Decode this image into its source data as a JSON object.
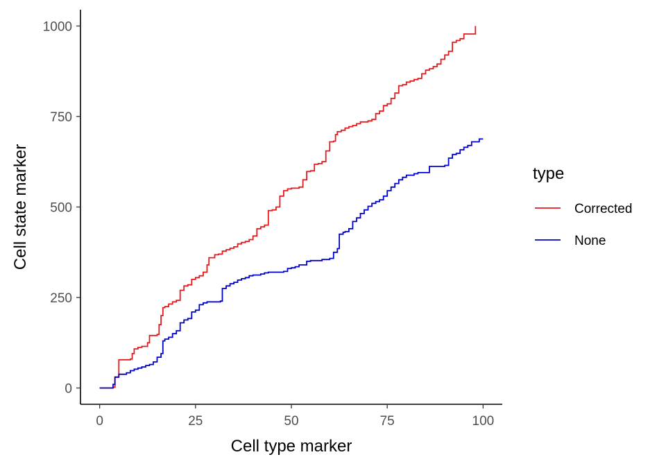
{
  "chart_data": {
    "type": "line",
    "step": true,
    "xlabel": "Cell type marker",
    "ylabel": "Cell state marker",
    "xlim": [
      -5,
      105
    ],
    "ylim": [
      -45,
      1045
    ],
    "x_ticks": [
      0,
      25,
      50,
      75,
      100
    ],
    "y_ticks": [
      0,
      250,
      500,
      750,
      1000
    ],
    "x_tick_labels": [
      "0",
      "25",
      "50",
      "75",
      "100"
    ],
    "y_tick_labels": [
      "0",
      "250",
      "500",
      "750",
      "1000"
    ],
    "grid": false,
    "legend": {
      "title": "type",
      "placement": "right"
    },
    "series": [
      {
        "name": "Corrected",
        "color": "#e41a1c",
        "points": [
          [
            0,
            0
          ],
          [
            3.5,
            2
          ],
          [
            4,
            30
          ],
          [
            5,
            78
          ],
          [
            8,
            80
          ],
          [
            8.5,
            95
          ],
          [
            9,
            108
          ],
          [
            10,
            112
          ],
          [
            11,
            115
          ],
          [
            12.5,
            125
          ],
          [
            13,
            145
          ],
          [
            15,
            148
          ],
          [
            15.5,
            175
          ],
          [
            16,
            200
          ],
          [
            16.5,
            222
          ],
          [
            17,
            225
          ],
          [
            18,
            232
          ],
          [
            19,
            238
          ],
          [
            20,
            242
          ],
          [
            21,
            270
          ],
          [
            22,
            282
          ],
          [
            23,
            285
          ],
          [
            24,
            300
          ],
          [
            25,
            305
          ],
          [
            26,
            310
          ],
          [
            27,
            320
          ],
          [
            28,
            340
          ],
          [
            28.5,
            360
          ],
          [
            30,
            368
          ],
          [
            31,
            370
          ],
          [
            32,
            378
          ],
          [
            33,
            382
          ],
          [
            34,
            386
          ],
          [
            35,
            390
          ],
          [
            36,
            398
          ],
          [
            37,
            402
          ],
          [
            38,
            405
          ],
          [
            39,
            410
          ],
          [
            40,
            420
          ],
          [
            41,
            440
          ],
          [
            42,
            445
          ],
          [
            43,
            450
          ],
          [
            44,
            490
          ],
          [
            45,
            492
          ],
          [
            46,
            500
          ],
          [
            47,
            530
          ],
          [
            48,
            545
          ],
          [
            49,
            550
          ],
          [
            50,
            552
          ],
          [
            52,
            555
          ],
          [
            53,
            575
          ],
          [
            54,
            598
          ],
          [
            55,
            600
          ],
          [
            56,
            618
          ],
          [
            57,
            620
          ],
          [
            58,
            625
          ],
          [
            59,
            655
          ],
          [
            60,
            680
          ],
          [
            61,
            682
          ],
          [
            61.5,
            700
          ],
          [
            62,
            708
          ],
          [
            63,
            712
          ],
          [
            64,
            718
          ],
          [
            65,
            722
          ],
          [
            66,
            725
          ],
          [
            67,
            730
          ],
          [
            68,
            735
          ],
          [
            70,
            738
          ],
          [
            71,
            742
          ],
          [
            72,
            758
          ],
          [
            73,
            765
          ],
          [
            74,
            780
          ],
          [
            75,
            785
          ],
          [
            76,
            800
          ],
          [
            77,
            815
          ],
          [
            78,
            835
          ],
          [
            79,
            838
          ],
          [
            80,
            845
          ],
          [
            81,
            848
          ],
          [
            82,
            852
          ],
          [
            83,
            855
          ],
          [
            84,
            868
          ],
          [
            85,
            878
          ],
          [
            86,
            882
          ],
          [
            87,
            888
          ],
          [
            88,
            895
          ],
          [
            89,
            908
          ],
          [
            90,
            920
          ],
          [
            91,
            930
          ],
          [
            92,
            955
          ],
          [
            93,
            960
          ],
          [
            94,
            965
          ],
          [
            95,
            978
          ],
          [
            98,
            978
          ],
          [
            98,
            1000
          ]
        ]
      },
      {
        "name": "None",
        "color": "#0000cd",
        "points": [
          [
            0,
            0
          ],
          [
            3.5,
            10
          ],
          [
            4,
            30
          ],
          [
            5,
            38
          ],
          [
            7,
            42
          ],
          [
            8,
            48
          ],
          [
            9,
            52
          ],
          [
            10,
            55
          ],
          [
            11,
            58
          ],
          [
            12,
            62
          ],
          [
            13,
            65
          ],
          [
            14,
            72
          ],
          [
            15,
            85
          ],
          [
            16,
            95
          ],
          [
            16.5,
            130
          ],
          [
            17,
            135
          ],
          [
            18,
            140
          ],
          [
            19,
            150
          ],
          [
            20,
            158
          ],
          [
            21,
            180
          ],
          [
            22,
            188
          ],
          [
            23,
            192
          ],
          [
            24,
            210
          ],
          [
            25,
            215
          ],
          [
            26,
            230
          ],
          [
            27,
            235
          ],
          [
            28,
            238
          ],
          [
            31.5,
            240
          ],
          [
            32,
            275
          ],
          [
            33,
            282
          ],
          [
            34,
            288
          ],
          [
            35,
            292
          ],
          [
            36,
            298
          ],
          [
            37,
            302
          ],
          [
            38,
            305
          ],
          [
            39,
            310
          ],
          [
            40,
            312
          ],
          [
            42,
            315
          ],
          [
            43,
            318
          ],
          [
            44,
            320
          ],
          [
            46,
            320
          ],
          [
            48,
            322
          ],
          [
            49,
            330
          ],
          [
            50,
            332
          ],
          [
            51,
            335
          ],
          [
            52,
            340
          ],
          [
            54,
            350
          ],
          [
            55,
            352
          ],
          [
            58,
            355
          ],
          [
            60,
            358
          ],
          [
            61,
            375
          ],
          [
            62,
            385
          ],
          [
            62.5,
            425
          ],
          [
            63.5,
            430
          ],
          [
            64,
            432
          ],
          [
            65,
            440
          ],
          [
            66,
            460
          ],
          [
            67,
            470
          ],
          [
            68,
            482
          ],
          [
            69,
            492
          ],
          [
            70,
            502
          ],
          [
            71,
            510
          ],
          [
            72,
            515
          ],
          [
            73,
            520
          ],
          [
            74,
            530
          ],
          [
            75,
            545
          ],
          [
            76,
            555
          ],
          [
            77,
            565
          ],
          [
            78,
            575
          ],
          [
            79,
            582
          ],
          [
            80,
            588
          ],
          [
            82,
            592
          ],
          [
            83,
            595
          ],
          [
            86,
            612
          ],
          [
            90,
            615
          ],
          [
            91,
            635
          ],
          [
            92,
            645
          ],
          [
            93,
            648
          ],
          [
            94,
            658
          ],
          [
            95,
            665
          ],
          [
            96,
            670
          ],
          [
            97,
            680
          ],
          [
            99,
            680
          ],
          [
            99,
            688
          ],
          [
            100,
            688
          ]
        ]
      }
    ]
  }
}
